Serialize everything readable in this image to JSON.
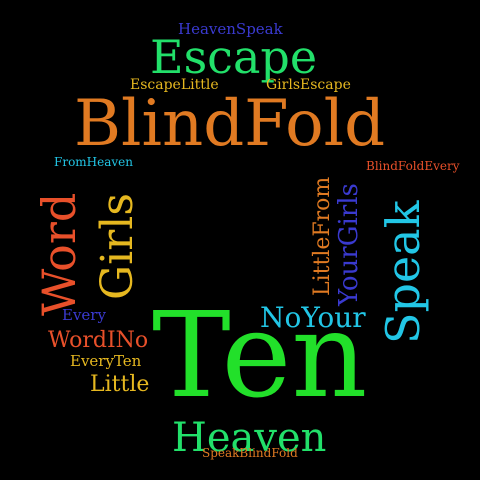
{
  "words": [
    {
      "id": "heavenspeak",
      "text": "HeavenSpeak",
      "color": "#3a3ad0"
    },
    {
      "id": "escape",
      "text": "Escape",
      "color": "#22e06a"
    },
    {
      "id": "escapelittle",
      "text": "EscapeLittle",
      "color": "#e6b820"
    },
    {
      "id": "girlsescape",
      "text": "GirlsEscape",
      "color": "#e6b820"
    },
    {
      "id": "blindfold",
      "text": "BlindFold",
      "color": "#e07a22"
    },
    {
      "id": "fromheaven",
      "text": "FromHeaven",
      "color": "#22c6e6"
    },
    {
      "id": "blindfoldevery",
      "text": "BlindFoldEvery",
      "color": "#e8502a"
    },
    {
      "id": "word",
      "text": "Word",
      "color": "#e8502a"
    },
    {
      "id": "girls",
      "text": "Girls",
      "color": "#e6b820"
    },
    {
      "id": "littlefrom",
      "text": "LittleFrom",
      "color": "#e07a22"
    },
    {
      "id": "yourgirls",
      "text": "YourGirls",
      "color": "#3a3ad0"
    },
    {
      "id": "speak",
      "text": "Speak",
      "color": "#22c6e6"
    },
    {
      "id": "noyour",
      "text": "NoYour",
      "color": "#22c6e6"
    },
    {
      "id": "every",
      "text": "Every",
      "color": "#3a3ad0"
    },
    {
      "id": "wordino",
      "text": "WordINo",
      "color": "#e8502a"
    },
    {
      "id": "everyten",
      "text": "EveryTen",
      "color": "#e6b820"
    },
    {
      "id": "little",
      "text": "Little",
      "color": "#e6b820"
    },
    {
      "id": "ten",
      "text": "Ten",
      "color": "#22e02a"
    },
    {
      "id": "heaven",
      "text": "Heaven",
      "color": "#22e06a"
    },
    {
      "id": "speakblindfold",
      "text": "SpeakBlindFold",
      "color": "#e07a22"
    }
  ]
}
